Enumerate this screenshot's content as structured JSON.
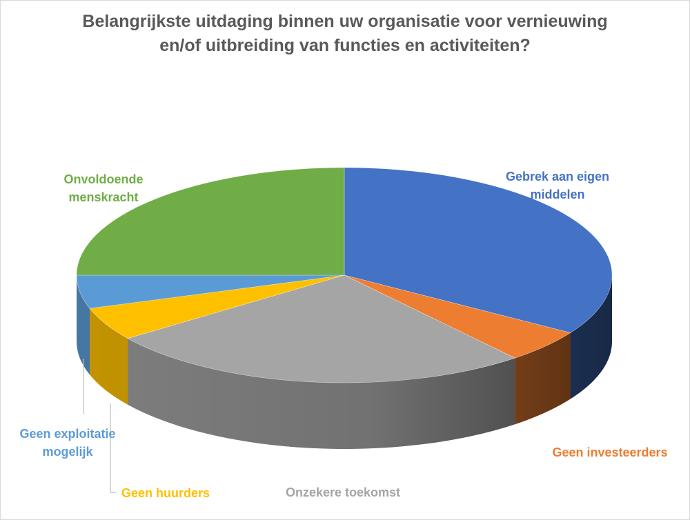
{
  "chart_data": {
    "type": "pie",
    "title_lines": [
      "Belangrijkste uitdaging binnen uw organisatie voor vernieuwing",
      "en/of uitbreiding van functies en activiteiten?"
    ],
    "style": "3d-exploded-none",
    "categories": [
      "Gebrek aan eigen middelen",
      "Geen investeerders",
      "Onzekere toekomst",
      "Geen huurders",
      "Geen exploitatie mogelijk",
      "Onvoldoende menskracht"
    ],
    "label_lines": [
      [
        "Gebrek aan eigen",
        "middelen"
      ],
      [
        "Geen investeerders"
      ],
      [
        "Onzekere toekomst"
      ],
      [
        "Geen huurders"
      ],
      [
        "Geen exploitatie",
        "mogelijk"
      ],
      [
        "Onvoldoende",
        "menskracht"
      ]
    ],
    "values": [
      34,
      5,
      26,
      5,
      5,
      25
    ],
    "colors": [
      "#4472c4",
      "#ed7d31",
      "#a5a5a5",
      "#ffc000",
      "#5b9bd5",
      "#70ad47"
    ],
    "label_colors": [
      "#4472c4",
      "#ed7d31",
      "#a5a5a5",
      "#ffc000",
      "#5b9bd5",
      "#70ad47"
    ]
  }
}
